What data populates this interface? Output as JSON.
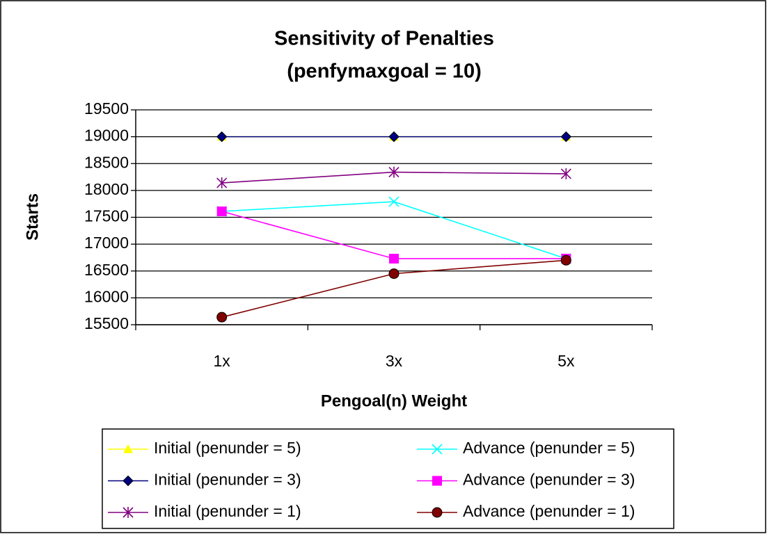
{
  "chart_data": {
    "type": "line",
    "title": "Sensitivity of Penalties",
    "subtitle": "(penfymaxgoal = 10)",
    "x_label": "Pengoal(n) Weight",
    "y_label": "Starts",
    "categories": [
      "1x",
      "3x",
      "5x"
    ],
    "ylim": [
      15500,
      19500
    ],
    "yticks": [
      15500,
      16000,
      16500,
      17000,
      17500,
      18000,
      18500,
      19000,
      19500
    ],
    "grid": true,
    "series": [
      {
        "name": "Initial (penunder = 5)",
        "color": "#ffff00",
        "marker": "triangle",
        "values": [
          19000,
          19000,
          19000
        ]
      },
      {
        "name": "Initial (penunder = 3)",
        "color": "#000080",
        "marker": "diamond",
        "values": [
          19000,
          19000,
          19000
        ]
      },
      {
        "name": "Initial (penunder = 1)",
        "color": "#800080",
        "marker": "asterisk",
        "values": [
          18140,
          18340,
          18310
        ]
      },
      {
        "name": "Advance (penunder = 5)",
        "color": "#00ffff",
        "marker": "x",
        "values": [
          17610,
          17790,
          16730
        ]
      },
      {
        "name": "Advance (penunder = 3)",
        "color": "#ff00ff",
        "marker": "square",
        "values": [
          17610,
          16730,
          16730
        ]
      },
      {
        "name": "Advance (penunder = 1)",
        "color": "#800000",
        "marker": "circle",
        "values": [
          15640,
          16450,
          16700
        ]
      }
    ]
  }
}
